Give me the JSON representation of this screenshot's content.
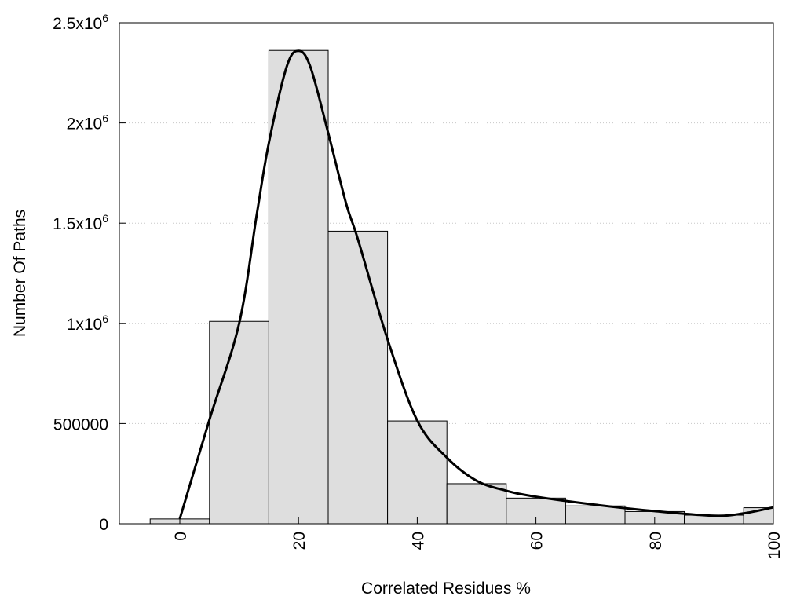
{
  "chart_data": {
    "type": "bar",
    "title": "",
    "xlabel": "Correlated Residues %",
    "ylabel": "Number Of Paths",
    "xlim": [
      -10,
      100
    ],
    "ylim": [
      0,
      2500000
    ],
    "grid": "horizontal dotted",
    "bin_width": 10,
    "x_ticks": [
      {
        "value": 0,
        "label": "0"
      },
      {
        "value": 20,
        "label": "20"
      },
      {
        "value": 40,
        "label": "40"
      },
      {
        "value": 60,
        "label": "60"
      },
      {
        "value": 80,
        "label": "80"
      },
      {
        "value": 100,
        "label": "100"
      }
    ],
    "y_ticks": [
      {
        "value": 0,
        "label": "0",
        "exp": ""
      },
      {
        "value": 500000,
        "label": "500000",
        "exp": ""
      },
      {
        "value": 1000000,
        "label": "1x10",
        "exp": "6"
      },
      {
        "value": 1500000,
        "label": "1.5x10",
        "exp": "6"
      },
      {
        "value": 2000000,
        "label": "2x10",
        "exp": "6"
      },
      {
        "value": 2500000,
        "label": "2.5x10",
        "exp": "6"
      }
    ],
    "bars": {
      "x": [
        0,
        10,
        20,
        30,
        40,
        50,
        60,
        70,
        80,
        90,
        100
      ],
      "values": [
        24000,
        1010000,
        2362000,
        1460000,
        513000,
        200000,
        128000,
        89000,
        61000,
        43000,
        80000
      ],
      "color": "#dedede"
    },
    "curve": {
      "x": [
        0,
        5,
        10,
        13,
        15,
        18,
        20,
        22,
        25,
        28,
        30,
        35,
        40,
        45,
        50,
        55,
        60,
        70,
        80,
        90,
        95,
        100
      ],
      "y": [
        25000,
        520000,
        1000000,
        1550000,
        1900000,
        2280000,
        2360000,
        2280000,
        1950000,
        1600000,
        1420000,
        920000,
        515000,
        330000,
        215000,
        165000,
        135000,
        95000,
        63000,
        40000,
        52000,
        82000
      ],
      "color": "#000000"
    }
  }
}
